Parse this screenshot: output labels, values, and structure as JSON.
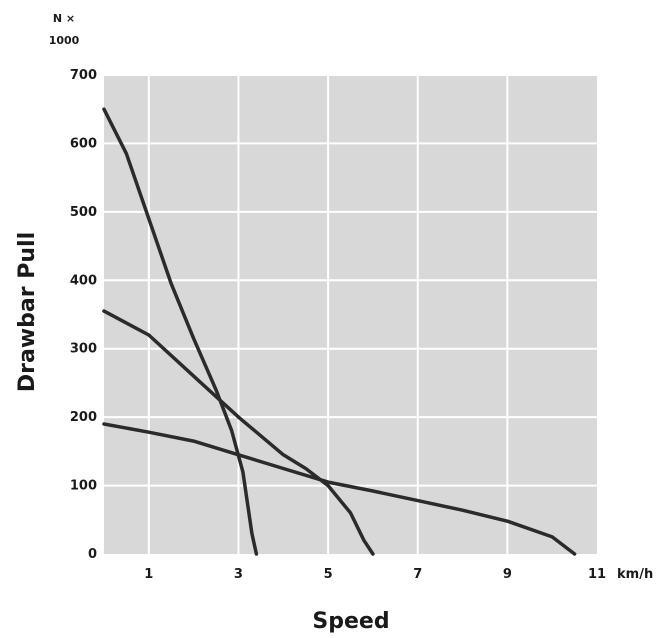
{
  "chart_data": {
    "type": "line",
    "title": "",
    "xlabel": "Speed",
    "ylabel": "Drawbar Pull",
    "x_unit": "km/h",
    "y_unit_line1": "N ×",
    "y_unit_line2": "1000",
    "xlim": [
      0,
      11
    ],
    "ylim": [
      0,
      700
    ],
    "x_ticks": [
      1,
      3,
      5,
      7,
      9,
      11
    ],
    "y_ticks": [
      0,
      100,
      200,
      300,
      400,
      500,
      600,
      700
    ],
    "grid": true,
    "legend": "none",
    "colors": {
      "plot_bg": "#d8d8d8",
      "grid": "#ffffff",
      "line": "#2b2b2b"
    },
    "series": [
      {
        "points": [
          [
            0,
            650
          ],
          [
            0.5,
            585
          ],
          [
            1,
            490
          ],
          [
            1.5,
            395
          ],
          [
            2,
            315
          ],
          [
            2.5,
            240
          ],
          [
            2.85,
            180
          ],
          [
            3.1,
            120
          ],
          [
            3.3,
            30
          ],
          [
            3.4,
            0
          ]
        ]
      },
      {
        "points": [
          [
            0,
            355
          ],
          [
            1,
            320
          ],
          [
            2,
            260
          ],
          [
            3,
            200
          ],
          [
            4,
            145
          ],
          [
            4.5,
            125
          ],
          [
            5,
            100
          ],
          [
            5.5,
            60
          ],
          [
            5.8,
            20
          ],
          [
            6.0,
            0
          ]
        ]
      },
      {
        "points": [
          [
            0,
            190
          ],
          [
            1,
            178
          ],
          [
            2,
            165
          ],
          [
            3,
            145
          ],
          [
            4,
            125
          ],
          [
            5,
            105
          ],
          [
            6,
            92
          ],
          [
            7,
            78
          ],
          [
            8,
            64
          ],
          [
            9,
            48
          ],
          [
            10,
            25
          ],
          [
            10.5,
            0
          ]
        ]
      }
    ]
  }
}
